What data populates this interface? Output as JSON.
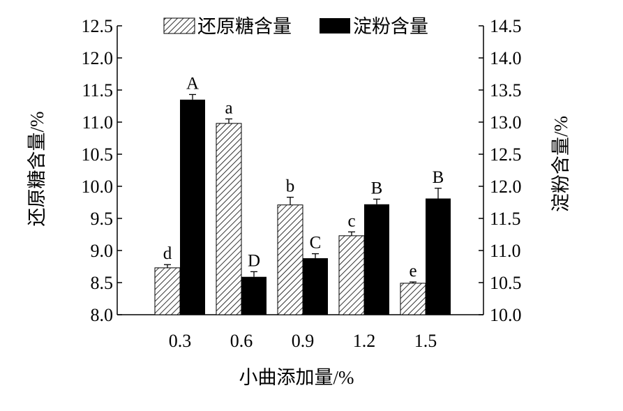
{
  "chart_data": {
    "type": "bar",
    "categories": [
      "0.3",
      "0.6",
      "0.9",
      "1.2",
      "1.5"
    ],
    "xlabel": "小曲添加量/%",
    "ylabel_left": "还原糖含量/%",
    "ylabel_right": "淀粉含量/%",
    "ylim_left": [
      8.0,
      12.5
    ],
    "ylim_right": [
      10.0,
      14.5
    ],
    "yticks_left": [
      "8.0",
      "8.5",
      "9.0",
      "9.5",
      "10.0",
      "10.5",
      "11.0",
      "11.5",
      "12.0",
      "12.5"
    ],
    "yticks_right": [
      "10.0",
      "10.5",
      "11.0",
      "11.5",
      "12.0",
      "12.5",
      "13.0",
      "13.5",
      "14.0",
      "14.5"
    ],
    "legend_position": "top",
    "grid": false,
    "series": [
      {
        "name": "还原糖含量",
        "axis": "left",
        "style": "hatched",
        "values": [
          8.73,
          10.98,
          9.71,
          9.23,
          8.49
        ],
        "errors": [
          0.05,
          0.07,
          0.12,
          0.06,
          0.02
        ],
        "labels": [
          "d",
          "a",
          "b",
          "c",
          "e"
        ]
      },
      {
        "name": "淀粉含量",
        "axis": "right",
        "style": "solid",
        "color": "#000000",
        "values": [
          13.35,
          10.59,
          10.88,
          11.72,
          11.81
        ],
        "errors": [
          0.08,
          0.08,
          0.07,
          0.08,
          0.16
        ],
        "labels": [
          "A",
          "D",
          "C",
          "B",
          "B"
        ]
      }
    ]
  }
}
